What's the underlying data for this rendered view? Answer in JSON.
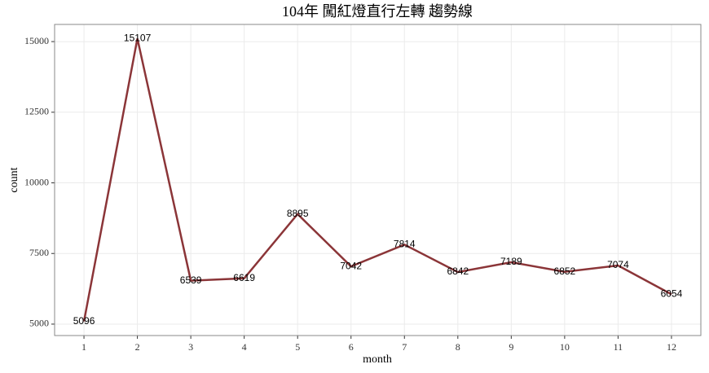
{
  "chart_data": {
    "type": "line",
    "title": "104年 闖紅燈直行左轉 趨勢線",
    "x_label": "month",
    "y_label": "count",
    "x": [
      1,
      2,
      3,
      4,
      5,
      6,
      7,
      8,
      9,
      10,
      11,
      12
    ],
    "values": [
      5096,
      15107,
      6539,
      6619,
      8895,
      7042,
      7814,
      6842,
      7189,
      6852,
      7074,
      6054
    ],
    "color": "#8b3538",
    "xlim": [
      0.45,
      12.55
    ],
    "xticks": [
      1,
      2,
      3,
      4,
      5,
      6,
      7,
      8,
      9,
      10,
      11,
      12
    ],
    "ylim": [
      4595.5,
      15607.5
    ],
    "yticks": [
      5000,
      7500,
      10000,
      12500,
      15000
    ],
    "grid": true
  }
}
